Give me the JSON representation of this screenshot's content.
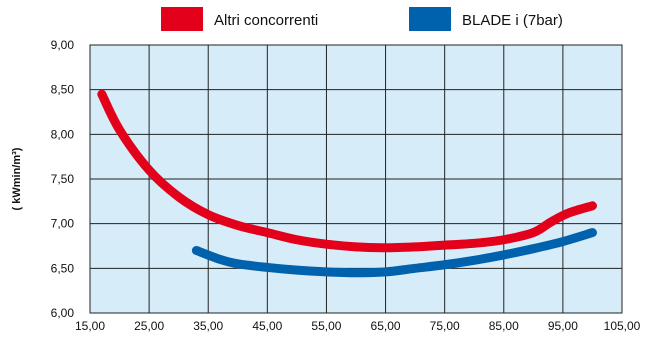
{
  "chart_data": {
    "type": "line",
    "ylabel": "( kWmin/m³)",
    "xlim": [
      15,
      105
    ],
    "ylim": [
      6.0,
      9.0
    ],
    "x_ticks": [
      "15,00",
      "25,00",
      "35,00",
      "45,00",
      "55,00",
      "65,00",
      "75,00",
      "85,00",
      "95,00",
      "105,00"
    ],
    "y_ticks": [
      "6,00",
      "6,50",
      "7,00",
      "7,50",
      "8,00",
      "8,50",
      "9,00"
    ],
    "grid": true,
    "legend_position": "top",
    "plot_background": "#d6ecf8",
    "series": [
      {
        "name": "Altri concorrenti",
        "color": "#e3001b",
        "points": [
          [
            17,
            8.45
          ],
          [
            20,
            8.05
          ],
          [
            25,
            7.6
          ],
          [
            30,
            7.3
          ],
          [
            35,
            7.1
          ],
          [
            40,
            6.98
          ],
          [
            45,
            6.9
          ],
          [
            50,
            6.82
          ],
          [
            55,
            6.77
          ],
          [
            60,
            6.74
          ],
          [
            65,
            6.73
          ],
          [
            70,
            6.74
          ],
          [
            75,
            6.76
          ],
          [
            80,
            6.78
          ],
          [
            85,
            6.82
          ],
          [
            90,
            6.9
          ],
          [
            93,
            7.02
          ],
          [
            96,
            7.12
          ],
          [
            100,
            7.2
          ]
        ]
      },
      {
        "name": "BLADE i (7bar)",
        "color": "#0061ad",
        "points": [
          [
            33,
            6.7
          ],
          [
            37,
            6.6
          ],
          [
            40,
            6.55
          ],
          [
            45,
            6.51
          ],
          [
            50,
            6.48
          ],
          [
            55,
            6.46
          ],
          [
            60,
            6.45
          ],
          [
            65,
            6.46
          ],
          [
            70,
            6.5
          ],
          [
            75,
            6.54
          ],
          [
            80,
            6.59
          ],
          [
            85,
            6.65
          ],
          [
            90,
            6.72
          ],
          [
            95,
            6.8
          ],
          [
            100,
            6.9
          ]
        ]
      }
    ]
  }
}
